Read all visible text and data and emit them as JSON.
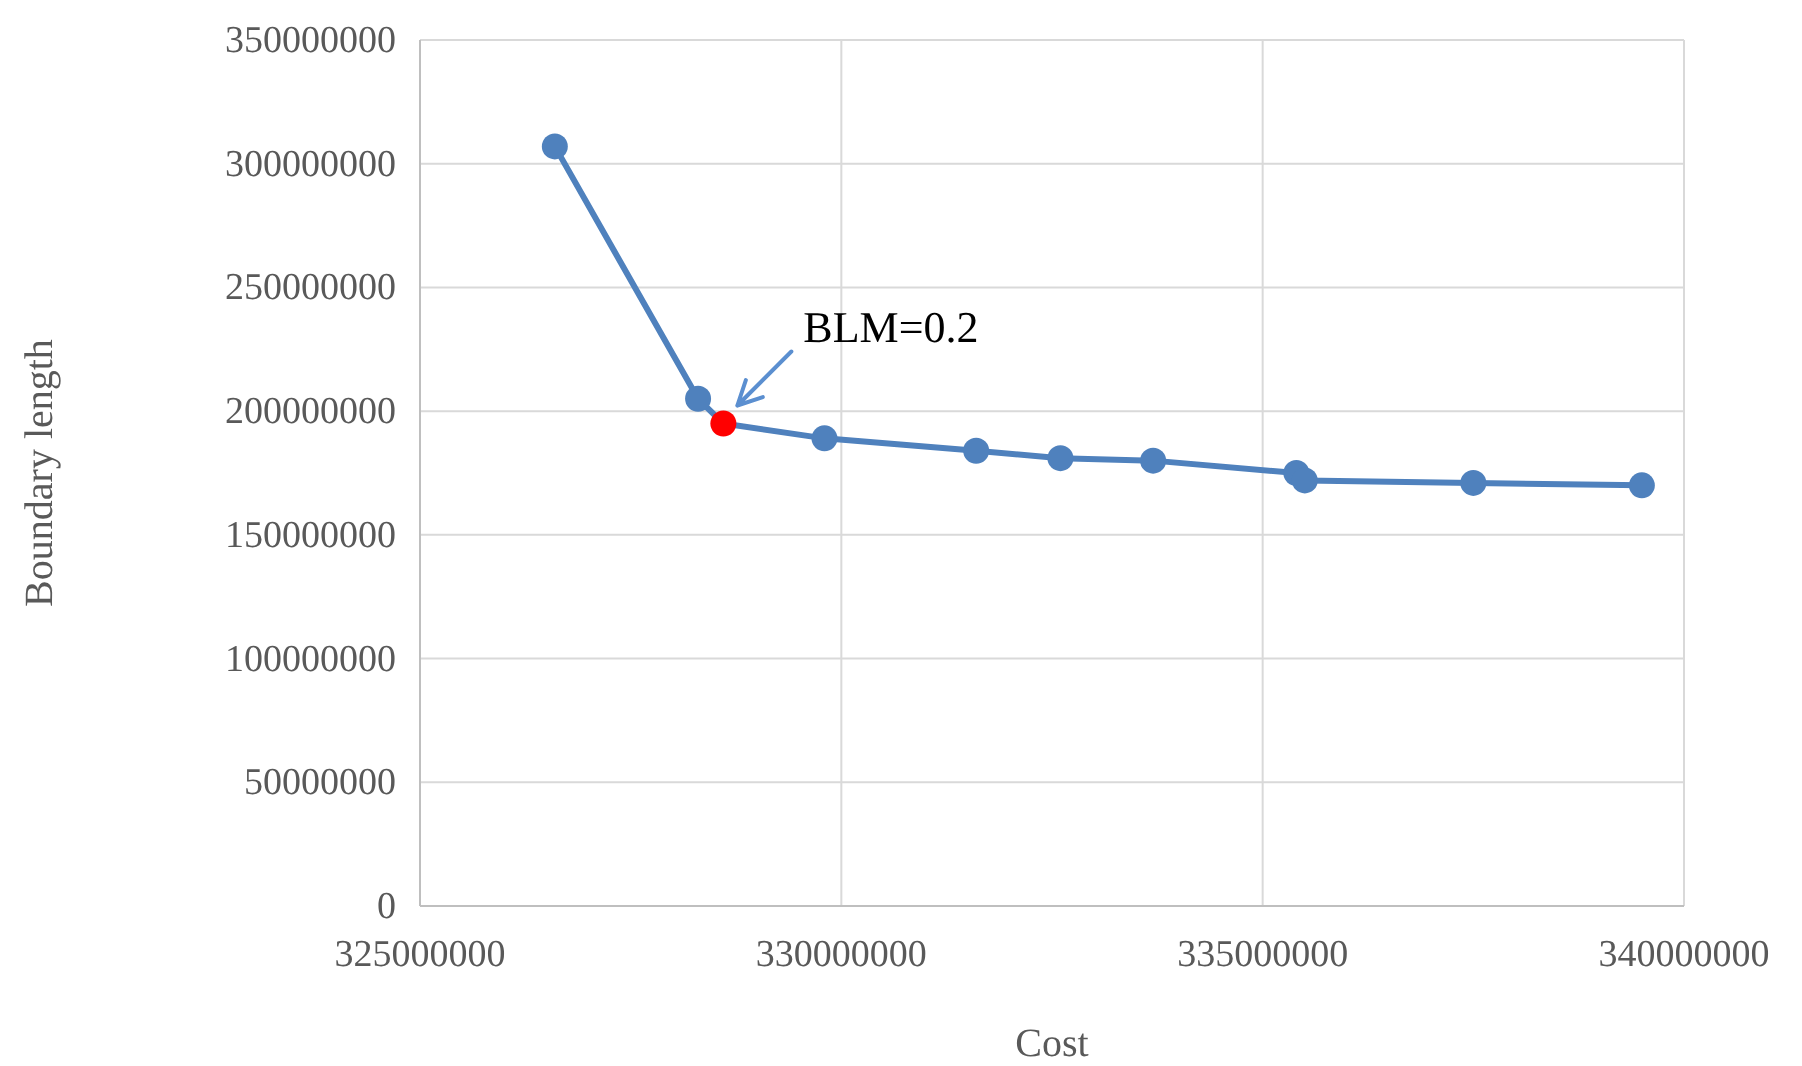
{
  "chart_data": {
    "type": "line",
    "xlabel": "Cost",
    "ylabel": "Boundary length",
    "x": [
      326600000,
      328300000,
      328600000,
      329800000,
      331600000,
      332600000,
      333700000,
      335400000,
      335500000,
      337500000,
      339500000
    ],
    "series": [
      {
        "color": "#4f81bd",
        "colors": [
          "#4f81bd",
          "#4f81bd",
          "#ff0000",
          "#4f81bd",
          "#4f81bd",
          "#4f81bd",
          "#4f81bd",
          "#4f81bd",
          "#4f81bd",
          "#4f81bd",
          "#4f81bd"
        ],
        "values": [
          307000000,
          205000000,
          195000000,
          189000000,
          184000000,
          181000000,
          180000000,
          175000000,
          172000000,
          171000000,
          170000000
        ]
      }
    ],
    "xlim": [
      325000000,
      340000000
    ],
    "xticks": [
      325000000,
      330000000,
      335000000,
      340000000
    ],
    "ylim": [
      0,
      350000000
    ],
    "yticks": [
      0,
      50000000,
      100000000,
      150000000,
      200000000,
      250000000,
      300000000,
      350000000
    ],
    "grid": true,
    "marker": "circle",
    "line_style": "solid",
    "annotations": [
      {
        "text": "BLM=0.2",
        "x": 328600000,
        "y": 195000000
      }
    ]
  }
}
